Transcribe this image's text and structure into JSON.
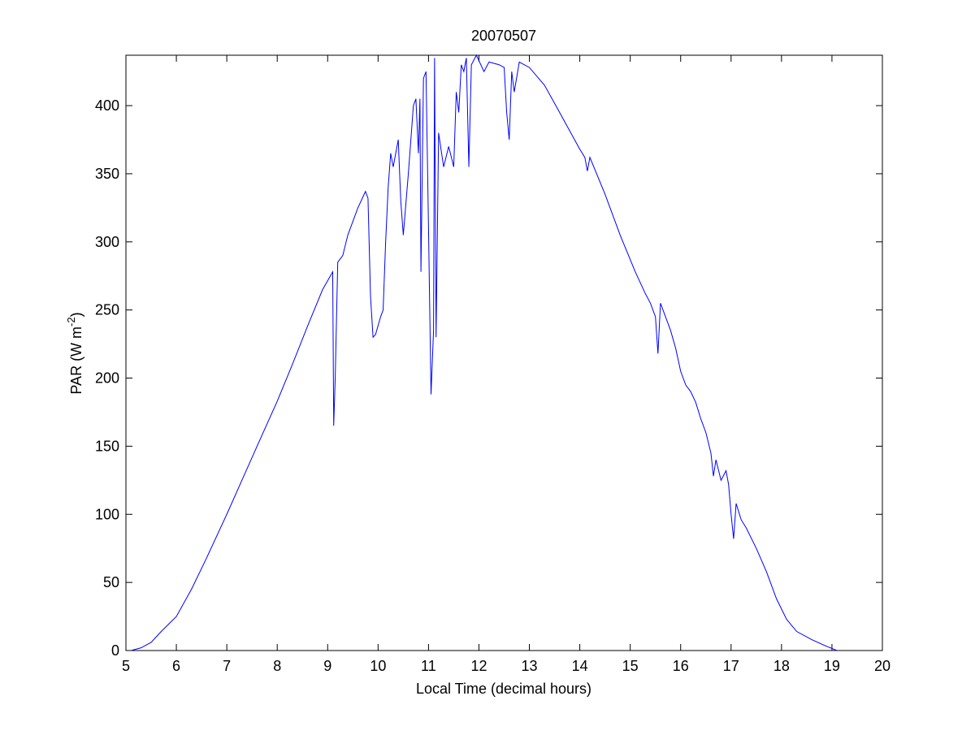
{
  "chart_data": {
    "type": "line",
    "title": "20070507",
    "x_label": "Local Time (decimal hours)",
    "y_label": {
      "text": "PAR (W m",
      "superscript": "-2",
      "suffix": ")"
    },
    "xlim": [
      5,
      20
    ],
    "xticks": [
      5,
      6,
      7,
      8,
      9,
      10,
      11,
      12,
      13,
      14,
      15,
      16,
      17,
      18,
      19,
      20
    ],
    "ylim": [
      0,
      437
    ],
    "yticks": [
      0,
      50,
      100,
      150,
      200,
      250,
      300,
      350,
      400
    ],
    "grid": false,
    "series": [
      {
        "color": "#0000ff",
        "x": [
          5.1,
          5.3,
          5.5,
          5.7,
          6.0,
          6.3,
          6.6,
          7.0,
          7.3,
          7.6,
          8.0,
          8.3,
          8.6,
          8.9,
          9.1,
          9.12,
          9.15,
          9.2,
          9.3,
          9.4,
          9.6,
          9.75,
          9.8,
          9.85,
          9.9,
          9.95,
          10.05,
          10.1,
          10.15,
          10.2,
          10.25,
          10.3,
          10.4,
          10.45,
          10.5,
          10.6,
          10.7,
          10.75,
          10.8,
          10.83,
          10.85,
          10.9,
          10.95,
          11.0,
          11.05,
          11.1,
          11.12,
          11.15,
          11.2,
          11.3,
          11.4,
          11.5,
          11.55,
          11.6,
          11.65,
          11.7,
          11.75,
          11.8,
          11.85,
          11.95,
          12.1,
          12.2,
          12.4,
          12.5,
          12.55,
          12.6,
          12.65,
          12.7,
          12.8,
          13.0,
          13.3,
          13.6,
          14.0,
          14.1,
          14.15,
          14.2,
          14.5,
          14.8,
          15.1,
          15.3,
          15.4,
          15.5,
          15.55,
          15.6,
          15.7,
          15.8,
          15.9,
          16.0,
          16.1,
          16.2,
          16.3,
          16.4,
          16.5,
          16.6,
          16.65,
          16.7,
          16.8,
          16.9,
          16.95,
          17.0,
          17.05,
          17.1,
          17.2,
          17.3,
          17.5,
          17.7,
          17.9,
          18.1,
          18.3,
          18.6,
          18.9,
          19.1
        ],
        "values": [
          0,
          2,
          6,
          14,
          25,
          45,
          68,
          100,
          125,
          150,
          183,
          210,
          238,
          265,
          278,
          165,
          200,
          285,
          290,
          305,
          325,
          337,
          332,
          260,
          230,
          232,
          245,
          250,
          300,
          340,
          365,
          355,
          375,
          330,
          305,
          350,
          400,
          405,
          365,
          405,
          278,
          420,
          425,
          310,
          188,
          235,
          435,
          230,
          380,
          355,
          370,
          355,
          410,
          395,
          430,
          425,
          435,
          355,
          430,
          437,
          425,
          432,
          430,
          428,
          395,
          375,
          425,
          410,
          432,
          428,
          415,
          395,
          368,
          362,
          352,
          362,
          335,
          305,
          278,
          262,
          255,
          245,
          218,
          255,
          245,
          235,
          222,
          205,
          195,
          190,
          182,
          170,
          160,
          145,
          128,
          140,
          125,
          132,
          122,
          100,
          82,
          108,
          96,
          90,
          75,
          58,
          38,
          23,
          14,
          8,
          3,
          0
        ]
      }
    ]
  }
}
